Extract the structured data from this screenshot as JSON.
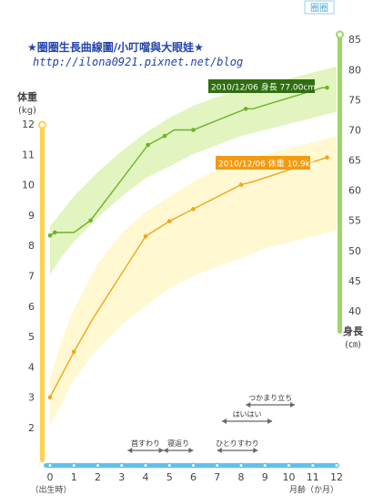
{
  "header": {
    "logo_text": "圈圈",
    "title": "★圈圈生長曲線圖/小叮噹與大眼娃★",
    "url": "http://ilona0921.pixnet.net/blog"
  },
  "colors": {
    "height_line": "#6fb12c",
    "height_band": "#dff3b8",
    "height_axis": "#9fd46a",
    "weight_line": "#f3a41c",
    "weight_band": "#fff7c8",
    "weight_axis": "#ffd24d",
    "x_axis": "#5bc3ee",
    "milestone": "#666666"
  },
  "chart_data": {
    "type": "line",
    "x_axis": {
      "label": "月齢（か月）",
      "zero_label": "（出生時）",
      "range": [
        0,
        12
      ],
      "ticks": [
        0,
        1,
        2,
        3,
        4,
        5,
        6,
        7,
        8,
        9,
        10,
        11,
        12
      ]
    },
    "y_axis_left": {
      "label": "体重",
      "unit": "(kg)",
      "range": [
        1,
        12
      ],
      "ticks": [
        2,
        3,
        4,
        5,
        6,
        7,
        8,
        9,
        10,
        11,
        12
      ]
    },
    "y_axis_right": {
      "label": "身長",
      "unit": "(㎝)",
      "range": [
        40,
        85
      ],
      "ticks": [
        40,
        45,
        50,
        55,
        60,
        65,
        70,
        75,
        80,
        85
      ]
    },
    "series": [
      {
        "name": "身長",
        "axis": "right",
        "x": [
          0,
          0.2,
          1,
          1.7,
          4.1,
          4.8,
          5.2,
          6.0,
          8.2,
          8.5,
          11.4,
          11.6
        ],
        "values": [
          52.5,
          53.0,
          53.0,
          55.0,
          67.5,
          69.0,
          70.0,
          70.0,
          73.5,
          73.5,
          77.0,
          77.0
        ],
        "markers": [
          0,
          1,
          3,
          4,
          5,
          7,
          8,
          11
        ],
        "band": {
          "x": [
            0,
            0.5,
            1,
            2,
            3,
            4,
            5,
            6,
            7,
            8,
            9,
            10,
            11,
            12
          ],
          "lower": [
            46.0,
            49.0,
            51.5,
            55.5,
            59.0,
            62.0,
            64.0,
            66.0,
            67.5,
            69.0,
            70.0,
            71.0,
            72.0,
            73.0
          ],
          "upper": [
            54.0,
            56.5,
            59.0,
            63.0,
            66.5,
            69.5,
            72.0,
            74.0,
            75.5,
            76.5,
            77.5,
            78.5,
            79.5,
            80.5
          ]
        },
        "callout": "2010/12/06 身長 77.00cm"
      },
      {
        "name": "体重",
        "axis": "left",
        "x": [
          0,
          1.0,
          1.8,
          4.0,
          5.0,
          6.0,
          8.0,
          8.5,
          11.6
        ],
        "values": [
          3.0,
          4.5,
          5.6,
          8.3,
          8.8,
          9.2,
          10.0,
          10.1,
          10.9
        ],
        "markers": [
          0,
          1,
          3,
          4,
          5,
          6,
          8
        ],
        "band": {
          "x": [
            0,
            0.5,
            1,
            2,
            3,
            4,
            5,
            6,
            7,
            8,
            9,
            10,
            11,
            12
          ],
          "lower": [
            2.1,
            2.8,
            3.6,
            4.6,
            5.4,
            6.0,
            6.6,
            7.0,
            7.3,
            7.6,
            7.9,
            8.1,
            8.3,
            8.5
          ],
          "upper": [
            3.6,
            4.9,
            5.9,
            7.4,
            8.4,
            9.1,
            9.6,
            10.1,
            10.5,
            10.8,
            11.0,
            11.2,
            11.4,
            11.6
          ]
        },
        "callout": "2010/12/06 体重 10.9kg"
      }
    ],
    "milestones": [
      {
        "label": "首すわり",
        "start": 3.25,
        "end": 4.75,
        "y": 1.25
      },
      {
        "label": "寝返り",
        "start": 4.75,
        "end": 6.0,
        "y": 1.25
      },
      {
        "label": "ひとりすわり",
        "start": 7.0,
        "end": 8.7,
        "y": 1.25
      },
      {
        "label": "はいはい",
        "start": 7.2,
        "end": 9.3,
        "y": 2.2
      },
      {
        "label": "つかまり立ち",
        "start": 8.2,
        "end": 10.25,
        "y": 2.8
      }
    ],
    "grid": false,
    "legend": "none"
  }
}
